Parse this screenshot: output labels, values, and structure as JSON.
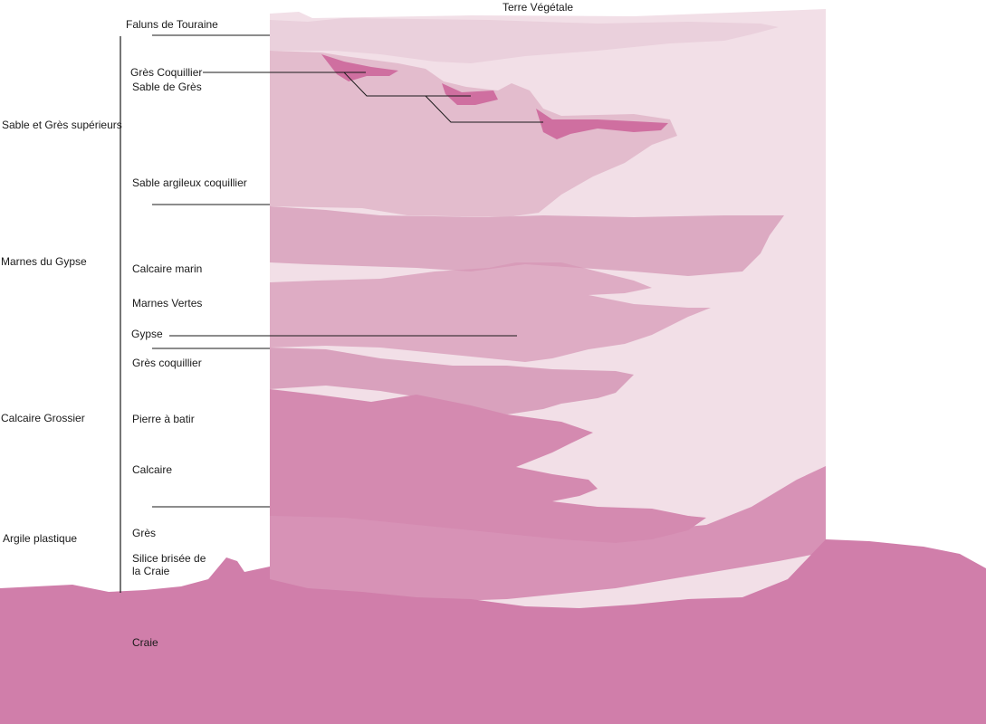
{
  "top_label": "Terre Végétale",
  "groups": {
    "sable_gres": "Sable et Grès supérieurs",
    "marnes_gypse": "Marnes du Gypse",
    "calcaire_grossier": "Calcaire Grossier",
    "argile_plastique": "Argile plastique"
  },
  "layers": {
    "faluns": "Faluns de Touraine",
    "gres_coquillier_top": "Grès Coquillier",
    "sable_de_gres": "Sable de Grès",
    "sable_argileux": "Sable argileux coquillier",
    "calcaire_marin": "Calcaire marin",
    "marnes_vertes": "Marnes Vertes",
    "gypse": "Gypse",
    "gres_coquillier": "Grès coquillier",
    "pierre_a_batir": "Pierre à batir",
    "calcaire": "Calcaire",
    "gres": "Grès",
    "silice": "Silice brisée de la Craie",
    "craie": "Craie"
  },
  "colors": {
    "lightest": "#f2dfe7",
    "light": "#ead0dc",
    "sand": "#e3bccd",
    "marl": "#dcaac2",
    "gypsum": "#d596b5",
    "limestone": "#d48ab0",
    "chalk": "#d07eaa",
    "shell_bed": "#cf6fa0",
    "line": "#1a1a1a"
  }
}
